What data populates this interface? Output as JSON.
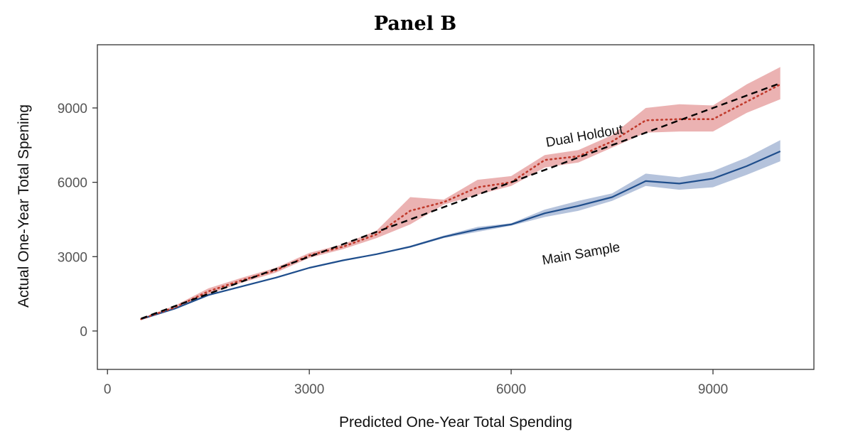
{
  "chart_data": {
    "type": "line",
    "title": "Panel B",
    "xlabel": "Predicted One-Year Total Spending",
    "ylabel": "Actual One-Year Total Spening",
    "xlim": [
      -150,
      10500
    ],
    "ylim": [
      -1550,
      11550
    ],
    "x_ticks": [
      0,
      3000,
      6000,
      9000
    ],
    "y_ticks": [
      0,
      3000,
      6000,
      9000
    ],
    "x_tick_labels": [
      "0",
      "3000",
      "6000",
      "9000"
    ],
    "y_tick_labels": [
      "0",
      "3000",
      "6000",
      "9000"
    ],
    "grid": false,
    "x": [
      500,
      1000,
      1500,
      2000,
      2500,
      3000,
      3500,
      4000,
      4500,
      5000,
      5500,
      6000,
      6500,
      7000,
      7500,
      8000,
      8500,
      9000,
      9500,
      10000
    ],
    "series": [
      {
        "name": "Dual Holdout",
        "style": "dotted",
        "color": "#c0392b",
        "band_color": "#e8a4a4",
        "values": [
          480,
          950,
          1600,
          2050,
          2450,
          3050,
          3400,
          3900,
          4850,
          5200,
          5800,
          6000,
          6900,
          7050,
          7650,
          8500,
          8550,
          8550,
          9250,
          9950
        ],
        "lower": [
          440,
          880,
          1480,
          1950,
          2350,
          2950,
          3300,
          3750,
          4300,
          5100,
          5500,
          5850,
          6600,
          6800,
          7400,
          8000,
          8050,
          8050,
          8800,
          9350
        ],
        "upper": [
          520,
          1020,
          1720,
          2150,
          2550,
          3150,
          3500,
          4050,
          5400,
          5300,
          6100,
          6250,
          7100,
          7300,
          7900,
          9000,
          9150,
          9100,
          9950,
          10650
        ]
      },
      {
        "name": "Main Sample",
        "style": "solid",
        "color": "#1f4e8c",
        "band_color": "#a8b9d6",
        "values": [
          480,
          900,
          1450,
          1800,
          2150,
          2550,
          2850,
          3100,
          3400,
          3800,
          4100,
          4300,
          4750,
          5050,
          5400,
          6050,
          5950,
          6150,
          6650,
          7250
        ],
        "lower": [
          460,
          870,
          1420,
          1770,
          2120,
          2520,
          2820,
          3070,
          3360,
          3750,
          4000,
          4250,
          4600,
          4850,
          5250,
          5850,
          5700,
          5800,
          6300,
          6850
        ],
        "upper": [
          500,
          930,
          1480,
          1830,
          2180,
          2580,
          2880,
          3130,
          3440,
          3850,
          4200,
          4350,
          4900,
          5250,
          5550,
          6350,
          6200,
          6450,
          7000,
          7700
        ]
      },
      {
        "name": "",
        "style": "dashed",
        "color": "#000000",
        "values": [
          500,
          1000,
          1500,
          2000,
          2500,
          3000,
          3500,
          4000,
          4500,
          5000,
          5500,
          6000,
          6500,
          7000,
          7500,
          8000,
          8500,
          9000,
          9500,
          10000
        ]
      }
    ],
    "annotations": [
      {
        "text": "Dual Holdout",
        "x": 7100,
        "y": 7700,
        "angle": -10
      },
      {
        "text": "Main Sample",
        "x": 7050,
        "y": 2950,
        "angle": -10
      }
    ]
  }
}
